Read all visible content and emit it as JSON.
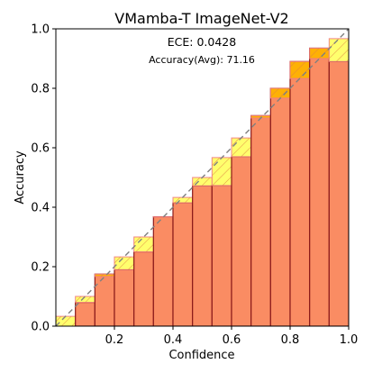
{
  "chart_data": {
    "type": "bar",
    "title": "VMamba-T  ImageNet-V2",
    "xlabel": "Confidence",
    "ylabel": "Accuracy",
    "xlim": [
      0,
      1
    ],
    "ylim": [
      0,
      1
    ],
    "xticks": [
      "0.2",
      "0.4",
      "0.6",
      "0.8",
      "1.0"
    ],
    "yticks": [
      "0.0",
      "0.2",
      "0.4",
      "0.6",
      "0.8",
      "1.0"
    ],
    "annotations": {
      "ece": "ECE: 0.0428",
      "accuracy": "Accuracy(Avg): 71.16"
    },
    "bins": [
      {
        "x0": 0.0,
        "x1": 0.0667,
        "confidence": 0.033,
        "accuracy": 0.0
      },
      {
        "x0": 0.0667,
        "x1": 0.1333,
        "confidence": 0.1,
        "accuracy": 0.08
      },
      {
        "x0": 0.1333,
        "x1": 0.2,
        "confidence": 0.167,
        "accuracy": 0.175
      },
      {
        "x0": 0.2,
        "x1": 0.2667,
        "confidence": 0.233,
        "accuracy": 0.19
      },
      {
        "x0": 0.2667,
        "x1": 0.3333,
        "confidence": 0.3,
        "accuracy": 0.25
      },
      {
        "x0": 0.3333,
        "x1": 0.4,
        "confidence": 0.367,
        "accuracy": 0.368
      },
      {
        "x0": 0.4,
        "x1": 0.4667,
        "confidence": 0.433,
        "accuracy": 0.415
      },
      {
        "x0": 0.4667,
        "x1": 0.5333,
        "confidence": 0.5,
        "accuracy": 0.472
      },
      {
        "x0": 0.5333,
        "x1": 0.6,
        "confidence": 0.567,
        "accuracy": 0.473
      },
      {
        "x0": 0.6,
        "x1": 0.6667,
        "confidence": 0.633,
        "accuracy": 0.57
      },
      {
        "x0": 0.6667,
        "x1": 0.7333,
        "confidence": 0.7,
        "accuracy": 0.708
      },
      {
        "x0": 0.7333,
        "x1": 0.8,
        "confidence": 0.767,
        "accuracy": 0.8
      },
      {
        "x0": 0.8,
        "x1": 0.8667,
        "confidence": 0.833,
        "accuracy": 0.89
      },
      {
        "x0": 0.8667,
        "x1": 0.9333,
        "confidence": 0.9,
        "accuracy": 0.935
      },
      {
        "x0": 0.9333,
        "x1": 1.0,
        "confidence": 0.967,
        "accuracy": 0.89
      }
    ],
    "diagonal": [
      [
        0,
        0
      ],
      [
        1,
        1
      ]
    ],
    "grid": false
  },
  "colors": {
    "accuracy_fill": "#fa8c63",
    "accuracy_edge": "#8b1a1a",
    "gap_fill": "#ffff66",
    "gap_overconfident_fill": "#ffb400",
    "gap_edge": "#f08080",
    "hatch": "#e08040",
    "diagonal": "#808080"
  }
}
